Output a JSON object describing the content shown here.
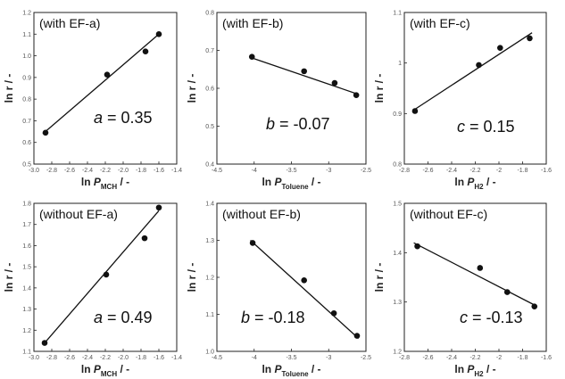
{
  "chart_data": [
    {
      "type": "scatter",
      "label": "(with EF-a)",
      "xlabel": {
        "prefix": "ln ",
        "var": "P",
        "sub": "MCH",
        "suffix": " / -"
      },
      "ylabel": "ln r / -",
      "xlim": [
        -3.0,
        -1.4
      ],
      "ylim": [
        0.5,
        1.2
      ],
      "xticks": [
        "-3.0",
        "-2.8",
        "-2.6",
        "-2.4",
        "-2.2",
        "-2.0",
        "-1.8",
        "-1.6",
        "-1.4"
      ],
      "xtickvals": [
        -3.0,
        -2.8,
        -2.6,
        -2.4,
        -2.2,
        -2.0,
        -1.8,
        -1.6,
        -1.4
      ],
      "yticks": [
        "0.5",
        "0.6",
        "0.7",
        "0.8",
        "0.9",
        "1.0",
        "1.1",
        "1.2"
      ],
      "ytickvals": [
        0.5,
        0.6,
        0.7,
        0.8,
        0.9,
        1.0,
        1.1,
        1.2
      ],
      "points": [
        {
          "x": -2.87,
          "y": 0.645
        },
        {
          "x": -2.18,
          "y": 0.913
        },
        {
          "x": -1.75,
          "y": 1.02
        },
        {
          "x": -1.6,
          "y": 1.1
        }
      ],
      "fit": [
        {
          "x": -2.9,
          "y": 0.64
        },
        {
          "x": -1.6,
          "y": 1.1
        }
      ],
      "annotation": {
        "var": "a",
        "text": " = 0.35"
      }
    },
    {
      "type": "scatter",
      "label": "(with EF-b)",
      "xlabel": {
        "prefix": "ln ",
        "var": "P",
        "sub": "Toluene",
        "suffix": " / -"
      },
      "ylabel": "ln r / -",
      "xlim": [
        -4.5,
        -2.5
      ],
      "ylim": [
        0.4,
        0.8
      ],
      "xticks": [
        "-4.5",
        "-4",
        "-3.5",
        "-3",
        "-2.5"
      ],
      "xtickvals": [
        -4.5,
        -4.0,
        -3.5,
        -3.0,
        -2.5
      ],
      "yticks": [
        "0.4",
        "0.5",
        "0.6",
        "0.7",
        "0.8"
      ],
      "ytickvals": [
        0.4,
        0.5,
        0.6,
        0.7,
        0.8
      ],
      "points": [
        {
          "x": -4.03,
          "y": 0.683
        },
        {
          "x": -3.33,
          "y": 0.645
        },
        {
          "x": -2.92,
          "y": 0.614
        },
        {
          "x": -2.63,
          "y": 0.582
        }
      ],
      "fit": [
        {
          "x": -4.06,
          "y": 0.682
        },
        {
          "x": -2.63,
          "y": 0.586
        }
      ],
      "annotation": {
        "var": "b",
        "text": " = -0.07"
      }
    },
    {
      "type": "scatter",
      "label": "(with EF-c)",
      "xlabel": {
        "prefix": "ln ",
        "var": "P",
        "sub": "H2",
        "suffix": " / -"
      },
      "ylabel": "ln r / -",
      "xlim": [
        -2.8,
        -1.6
      ],
      "ylim": [
        0.8,
        1.1
      ],
      "xticks": [
        "-2.8",
        "-2.6",
        "-2.4",
        "-2.2",
        "-2",
        "-1.8",
        "-1.6"
      ],
      "xtickvals": [
        -2.8,
        -2.6,
        -2.4,
        -2.2,
        -2.0,
        -1.8,
        -1.6
      ],
      "yticks": [
        "0.8",
        "0.9",
        "1",
        "1.1"
      ],
      "ytickvals": [
        0.8,
        0.9,
        1.0,
        1.1
      ],
      "points": [
        {
          "x": -2.71,
          "y": 0.905
        },
        {
          "x": -2.17,
          "y": 0.996
        },
        {
          "x": -1.99,
          "y": 1.03
        },
        {
          "x": -1.74,
          "y": 1.049
        }
      ],
      "fit": [
        {
          "x": -2.72,
          "y": 0.907
        },
        {
          "x": -1.72,
          "y": 1.06
        }
      ],
      "annotation": {
        "var": "c",
        "text": " = 0.15"
      }
    },
    {
      "type": "scatter",
      "label": "(without EF-a)",
      "xlabel": {
        "prefix": "ln ",
        "var": "P",
        "sub": "MCH",
        "suffix": " / -"
      },
      "ylabel": "ln r / -",
      "xlim": [
        -3.0,
        -1.4
      ],
      "ylim": [
        1.1,
        1.8
      ],
      "xticks": [
        "-3.0",
        "-2.8",
        "-2.6",
        "-2.4",
        "-2.2",
        "-2.0",
        "-1.8",
        "-1.6",
        "-1.4"
      ],
      "xtickvals": [
        -3.0,
        -2.8,
        -2.6,
        -2.4,
        -2.2,
        -2.0,
        -1.8,
        -1.6,
        -1.4
      ],
      "yticks": [
        "1.1",
        "1.2",
        "1.3",
        "1.4",
        "1.5",
        "1.6",
        "1.7",
        "1.8"
      ],
      "ytickvals": [
        1.1,
        1.2,
        1.3,
        1.4,
        1.5,
        1.6,
        1.7,
        1.8
      ],
      "points": [
        {
          "x": -2.88,
          "y": 1.14
        },
        {
          "x": -2.19,
          "y": 1.463
        },
        {
          "x": -1.76,
          "y": 1.635
        },
        {
          "x": -1.6,
          "y": 1.78
        }
      ],
      "fit": [
        {
          "x": -2.9,
          "y": 1.13
        },
        {
          "x": -1.6,
          "y": 1.765
        }
      ],
      "annotation": {
        "var": "a",
        "text": " = 0.49"
      }
    },
    {
      "type": "scatter",
      "label": "(without EF-b)",
      "xlabel": {
        "prefix": "ln ",
        "var": "P",
        "sub": "Toluene",
        "suffix": " / -"
      },
      "ylabel": "ln r / -",
      "xlim": [
        -4.5,
        -2.5
      ],
      "ylim": [
        1.0,
        1.4
      ],
      "xticks": [
        "-4.5",
        "-4",
        "-3.5",
        "-3",
        "-2.5"
      ],
      "xtickvals": [
        -4.5,
        -4.0,
        -3.5,
        -3.0,
        -2.5
      ],
      "yticks": [
        "1.0",
        "1.1",
        "1.2",
        "1.3",
        "1.4"
      ],
      "ytickvals": [
        1.0,
        1.1,
        1.2,
        1.3,
        1.4
      ],
      "points": [
        {
          "x": -4.02,
          "y": 1.293
        },
        {
          "x": -3.33,
          "y": 1.192
        },
        {
          "x": -2.93,
          "y": 1.103
        },
        {
          "x": -2.62,
          "y": 1.042
        }
      ],
      "fit": [
        {
          "x": -4.05,
          "y": 1.3
        },
        {
          "x": -2.6,
          "y": 1.035
        }
      ],
      "annotation": {
        "var": "b",
        "text": " = -0.18"
      }
    },
    {
      "type": "scatter",
      "label": "(without EF-c)",
      "xlabel": {
        "prefix": "ln ",
        "var": "P",
        "sub": "H2",
        "suffix": " / -"
      },
      "ylabel": "ln r / -",
      "xlim": [
        -2.8,
        -1.6
      ],
      "ylim": [
        1.2,
        1.5
      ],
      "xticks": [
        "-2.8",
        "-2.6",
        "-2.4",
        "-2.2",
        "-2",
        "-1.8",
        "-1.6"
      ],
      "xtickvals": [
        -2.8,
        -2.6,
        -2.4,
        -2.2,
        -2.0,
        -1.8,
        -1.6
      ],
      "yticks": [
        "1.2",
        "1.3",
        "1.4",
        "1.5"
      ],
      "ytickvals": [
        1.2,
        1.3,
        1.4,
        1.5
      ],
      "points": [
        {
          "x": -2.69,
          "y": 1.413
        },
        {
          "x": -2.16,
          "y": 1.369
        },
        {
          "x": -1.93,
          "y": 1.32
        },
        {
          "x": -1.7,
          "y": 1.291
        }
      ],
      "fit": [
        {
          "x": -2.72,
          "y": 1.42
        },
        {
          "x": -1.7,
          "y": 1.294
        }
      ],
      "annotation": {
        "var": "c",
        "text": " = -0.13"
      }
    }
  ]
}
